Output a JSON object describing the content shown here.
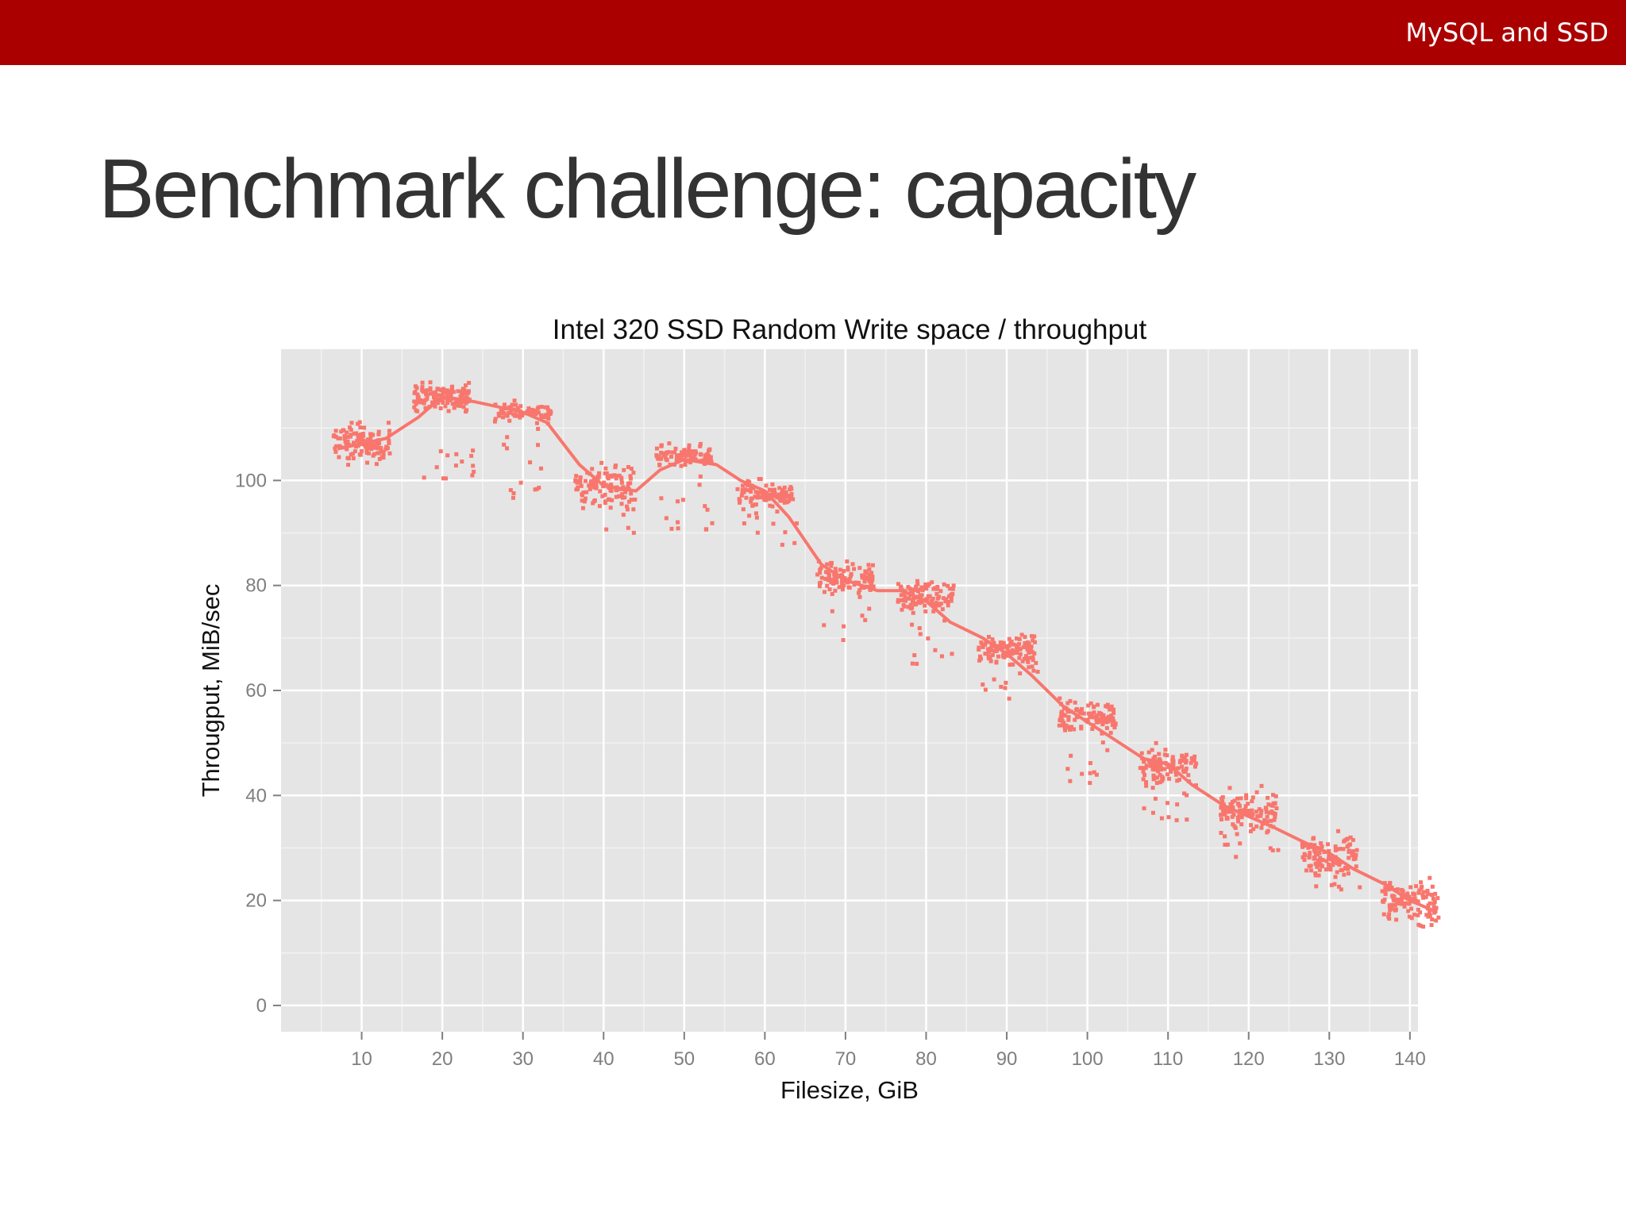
{
  "header": {
    "deck_title": "MySQL and SSD",
    "bar_color": "#ab0000"
  },
  "slide": {
    "title": "Benchmark challenge: capacity"
  },
  "chart_data": {
    "type": "scatter",
    "title": "Intel 320 SSD Random Write space / throughput",
    "xlabel": "Filesize, GiB",
    "ylabel": "Througput, MiB/sec",
    "xlim": [
      0,
      141
    ],
    "ylim": [
      -5,
      125
    ],
    "x_ticks": [
      10,
      20,
      30,
      40,
      50,
      60,
      70,
      80,
      90,
      100,
      110,
      120,
      130,
      140
    ],
    "y_ticks": [
      0,
      20,
      40,
      60,
      80,
      100
    ],
    "grid": true,
    "point_color": "#f8766d",
    "background_color": "#e5e5e5",
    "series": [
      {
        "name": "smoothed trend",
        "style": "line",
        "x": [
          7,
          10,
          13,
          17,
          20,
          24,
          30,
          33,
          37,
          40,
          44,
          47,
          50,
          54,
          57,
          60,
          63,
          67,
          70,
          74,
          77,
          80,
          83,
          87,
          90,
          93,
          97,
          100,
          103,
          107,
          110,
          113,
          117,
          120,
          123,
          127,
          130,
          133,
          137,
          140,
          143
        ],
        "y": [
          106,
          107,
          108,
          112,
          116,
          115,
          113,
          111,
          103,
          99,
          98,
          102,
          104,
          103,
          100,
          98,
          93,
          84,
          81,
          79,
          79,
          77,
          73,
          70,
          67,
          63,
          57,
          54,
          51,
          47,
          46,
          42,
          38,
          36,
          34,
          31,
          29,
          26,
          23,
          20,
          18
        ]
      },
      {
        "name": "samples",
        "style": "points",
        "clusters": [
          {
            "x": [
              6.5,
              13.5
            ],
            "y_mean": 107,
            "spread": 2.5,
            "n": 120
          },
          {
            "x": [
              16.5,
              23.5
            ],
            "y_mean": 116,
            "spread": 1.8,
            "n": 130
          },
          {
            "x": [
              26.5,
              33.5
            ],
            "y_mean": 113,
            "spread": 1.2,
            "n": 80
          },
          {
            "x": [
              36.5,
              43.5
            ],
            "y_mean": 99,
            "spread": 2.8,
            "n": 110
          },
          {
            "x": [
              46.5,
              53.5
            ],
            "y_mean": 104.5,
            "spread": 1.5,
            "n": 100
          },
          {
            "x": [
              56.5,
              63.5
            ],
            "y_mean": 97.5,
            "spread": 1.6,
            "n": 95
          },
          {
            "x": [
              66.5,
              73.5
            ],
            "y_mean": 81.5,
            "spread": 1.8,
            "n": 110
          },
          {
            "x": [
              76.5,
              83.5
            ],
            "y_mean": 78,
            "spread": 1.8,
            "n": 110
          },
          {
            "x": [
              86.5,
              93.5
            ],
            "y_mean": 68,
            "spread": 2.2,
            "n": 110
          },
          {
            "x": [
              96.5,
              103.5
            ],
            "y_mean": 55,
            "spread": 2.2,
            "n": 110
          },
          {
            "x": [
              106.5,
              113.5
            ],
            "y_mean": 45.5,
            "spread": 2.2,
            "n": 110
          },
          {
            "x": [
              116.5,
              123.5
            ],
            "y_mean": 37,
            "spread": 2.5,
            "n": 110
          },
          {
            "x": [
              126.5,
              133.5
            ],
            "y_mean": 29,
            "spread": 2.5,
            "n": 110
          },
          {
            "x": [
              136.5,
              143.5
            ],
            "y_mean": 20,
            "spread": 2.5,
            "n": 110
          }
        ],
        "outliers": [
          {
            "x": [
              17,
              24
            ],
            "y": [
              99,
              107
            ]
          },
          {
            "x": [
              27,
              33
            ],
            "y": [
              94,
              110
            ]
          },
          {
            "x": [
              37,
              44
            ],
            "y": [
              90,
              103
            ]
          },
          {
            "x": [
              47,
              54
            ],
            "y": [
              88,
              101
            ]
          },
          {
            "x": [
              57,
              64
            ],
            "y": [
              85,
              96
            ]
          },
          {
            "x": [
              67,
              74
            ],
            "y": [
              69,
              80
            ]
          },
          {
            "x": [
              77,
              84
            ],
            "y": [
              64,
              76
            ]
          },
          {
            "x": [
              87,
              94
            ],
            "y": [
              58,
              66
            ]
          },
          {
            "x": [
              97,
              104
            ],
            "y": [
              42,
              53
            ]
          },
          {
            "x": [
              107,
              114
            ],
            "y": [
              35,
              44
            ]
          },
          {
            "x": [
              117,
              124
            ],
            "y": [
              28,
              35
            ]
          },
          {
            "x": [
              127,
              134
            ],
            "y": [
              22,
              28
            ]
          },
          {
            "x": [
              137,
              144
            ],
            "y": [
              15,
              18
            ]
          }
        ]
      }
    ]
  }
}
